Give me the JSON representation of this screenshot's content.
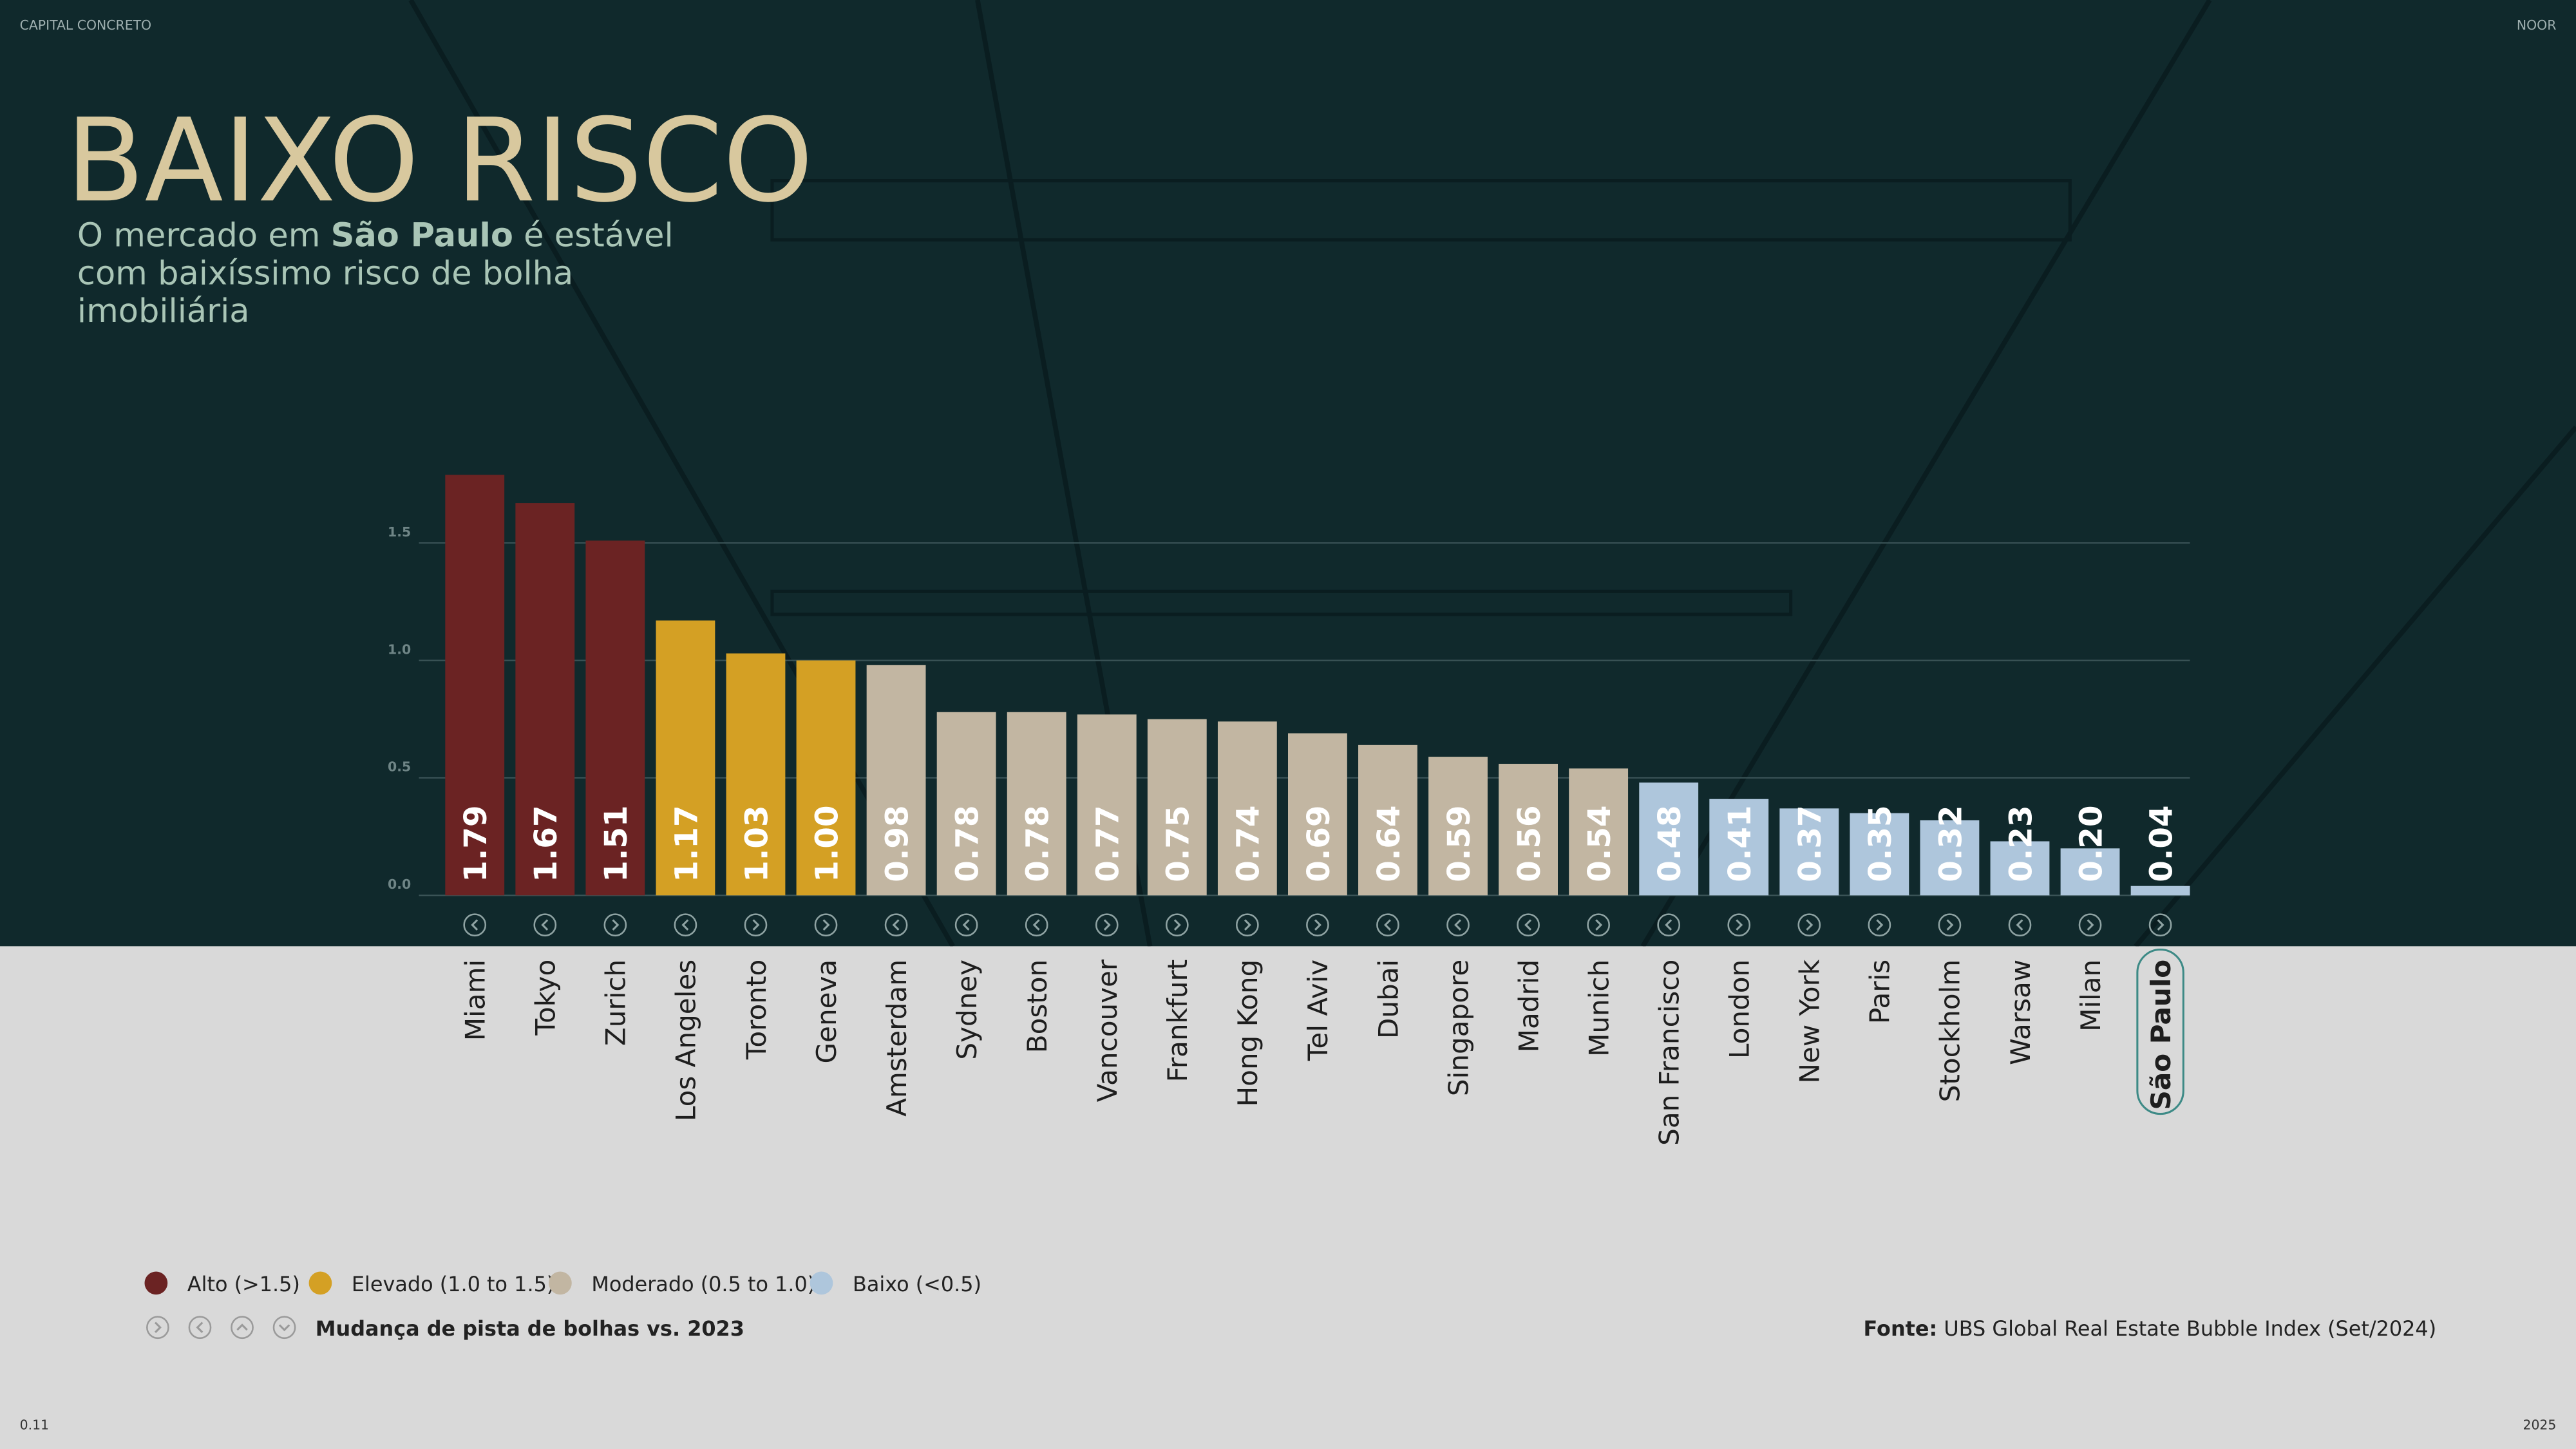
{
  "header": {
    "brand": "CAPITAL CONCRETO",
    "brand_right": "NOOR"
  },
  "chart_data": {
    "type": "bar",
    "title": "BAIXO RISCO",
    "subtitle": {
      "line1_before": "O mercado em ",
      "line1_bold": "São Paulo",
      "line1_after": " é estável",
      "line2": "com baixíssimo risco de bolha",
      "line3": "imobiliária"
    },
    "categories": [
      "Miami",
      "Tokyo",
      "Zurich",
      "Los Angeles",
      "Toronto",
      "Geneva",
      "Amsterdam",
      "Sydney",
      "Boston",
      "Vancouver",
      "Frankfurt",
      "Hong Kong",
      "Tel Aviv",
      "Dubai",
      "Singapore",
      "Madrid",
      "Munich",
      "San Francisco",
      "London",
      "New York",
      "Paris",
      "Stockholm",
      "Warsaw",
      "Milan",
      "São Paulo"
    ],
    "values": [
      1.79,
      1.67,
      1.51,
      1.17,
      1.03,
      1.0,
      0.98,
      0.78,
      0.78,
      0.77,
      0.75,
      0.74,
      0.69,
      0.64,
      0.59,
      0.56,
      0.54,
      0.48,
      0.41,
      0.37,
      0.35,
      0.32,
      0.23,
      0.2,
      0.04
    ],
    "value_labels": [
      "1.79",
      "1.67",
      "1.51",
      "1.17",
      "1.03",
      "1.00",
      "0.98",
      "0.78",
      "0.78",
      "0.77",
      "0.75",
      "0.74",
      "0.69",
      "0.64",
      "0.59",
      "0.56",
      "0.54",
      "0.48",
      "0.41",
      "0.37",
      "0.35",
      "0.32",
      "0.23",
      "0.20",
      "0.04"
    ],
    "colors": [
      "#6b2323",
      "#6b2323",
      "#6b2323",
      "#d4a024",
      "#d4a024",
      "#d4a024",
      "#c2b6a2",
      "#c2b6a2",
      "#c2b6a2",
      "#c2b6a2",
      "#c2b6a2",
      "#c2b6a2",
      "#c2b6a2",
      "#c2b6a2",
      "#c2b6a2",
      "#c2b6a2",
      "#c2b6a2",
      "#aec6dc",
      "#aec6dc",
      "#aec6dc",
      "#aec6dc",
      "#aec6dc",
      "#aec6dc",
      "#aec6dc",
      "#aec6dc"
    ],
    "changes": [
      "left",
      "left",
      "right",
      "left",
      "right",
      "right",
      "left",
      "left",
      "left",
      "right",
      "right",
      "right",
      "right",
      "left",
      "left",
      "left",
      "right",
      "left",
      "right",
      "right",
      "right",
      "right",
      "left",
      "right",
      "right"
    ],
    "ylim": [
      0,
      1.8
    ],
    "yticks": [
      {
        "value": 0,
        "label": "0.0"
      },
      0.5,
      {
        "value": 1,
        "label": "1.0"
      },
      1.5
    ],
    "grid": true,
    "legend": [
      {
        "label": "Alto (>1.5)",
        "color": "#6b2323"
      },
      {
        "label": "Elevado (1.0 to 1.5)",
        "color": "#d4a024"
      },
      {
        "label": "Moderado (0.5 to 1.0)",
        "color": "#c2b6a2"
      },
      {
        "label": "Baixo (<0.5)",
        "color": "#aec6dc"
      }
    ],
    "change_legend": {
      "icons": [
        "right",
        "left",
        "up",
        "down"
      ],
      "label": "Mudança de pista de bolhas vs. 2023"
    }
  },
  "footer": {
    "source_label": "Fonte:",
    "source": " UBS Global Real Estate Bubble Index (Set/2024)",
    "page": "0.11",
    "year": "2025"
  }
}
